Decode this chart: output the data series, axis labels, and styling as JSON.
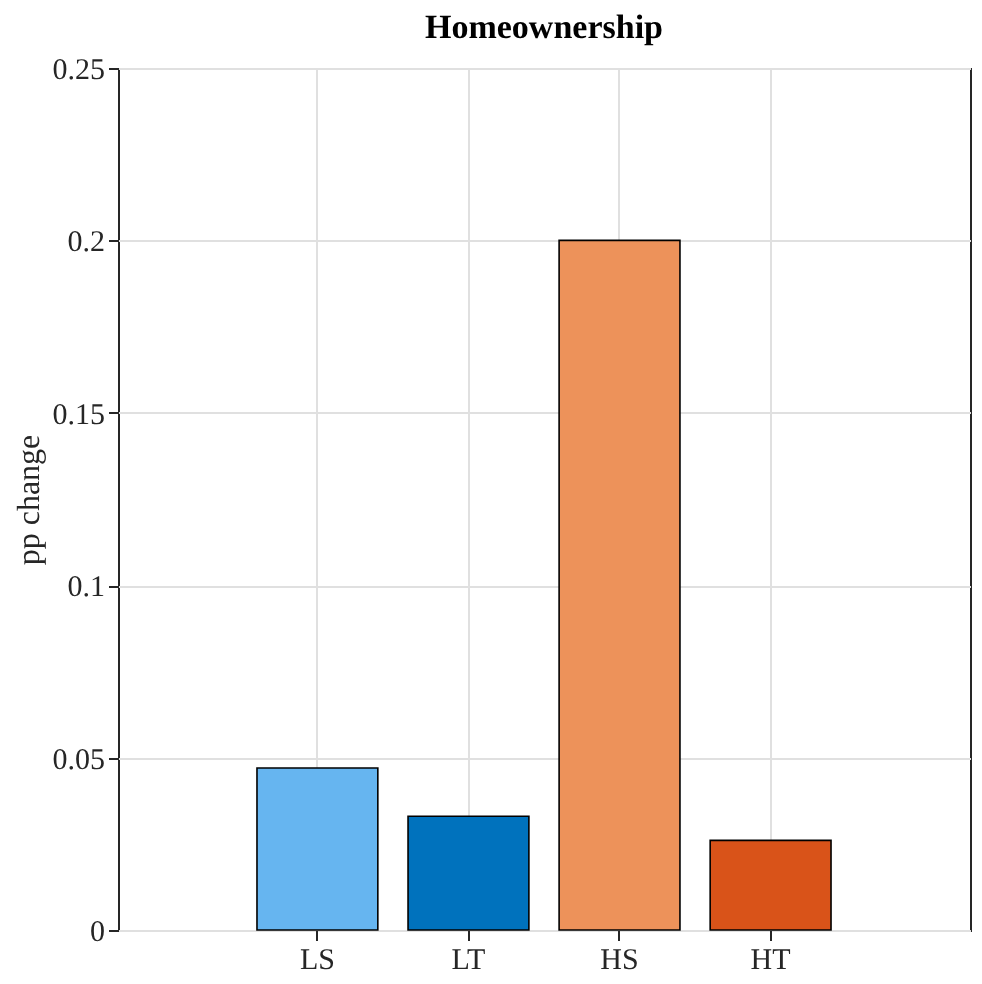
{
  "chart_data": {
    "type": "bar",
    "title": "Homeownership",
    "ylabel": "pp change",
    "categories": [
      "LS",
      "LT",
      "HS",
      "HT"
    ],
    "values": [
      0.047,
      0.033,
      0.2,
      0.026
    ],
    "colors": [
      "#66b5f0",
      "#0072bd",
      "#ed925a",
      "#d95319"
    ],
    "ylim": [
      0,
      0.25
    ],
    "yticks": [
      0,
      0.05,
      0.1,
      0.15,
      0.2,
      0.25
    ],
    "grid": true
  }
}
